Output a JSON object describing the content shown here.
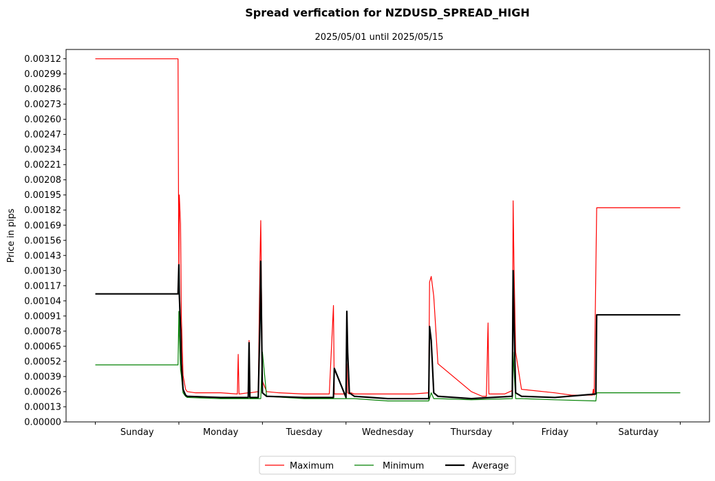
{
  "chart_data": {
    "type": "line",
    "title": "Spread verfication for NZDUSD_SPREAD_HIGH",
    "subtitle": "2025/05/01 until 2025/05/15",
    "xlabel": "",
    "ylabel": "Price in pips",
    "ylim": [
      0,
      0.0032
    ],
    "yticks": [
      "0.00000",
      "0.00013",
      "0.00026",
      "0.00039",
      "0.00052",
      "0.00065",
      "0.00078",
      "0.00091",
      "0.00104",
      "0.00117",
      "0.00130",
      "0.00143",
      "0.00156",
      "0.00169",
      "0.00182",
      "0.00195",
      "0.00208",
      "0.00221",
      "0.00234",
      "0.00247",
      "0.00260",
      "0.00273",
      "0.00286",
      "0.00299",
      "0.00312"
    ],
    "categories": [
      "Sunday",
      "Monday",
      "Tuesday",
      "Wednesday",
      "Thursday",
      "Friday",
      "Saturday"
    ],
    "grid": false,
    "legend_position": "bottom-center",
    "series": [
      {
        "name": "Maximum",
        "color": "#ff0000",
        "x": [
          0,
          0.99,
          1.0,
          1.005,
          1.02,
          1.03,
          1.05,
          1.08,
          1.1,
          1.2,
          1.5,
          1.7,
          1.71,
          1.72,
          1.83,
          1.84,
          1.85,
          1.95,
          1.97,
          1.98,
          2.0,
          2.05,
          2.2,
          2.5,
          2.6,
          2.8,
          2.85,
          2.86,
          2.87,
          3.0,
          3.01,
          3.02,
          3.04,
          3.06,
          3.1,
          3.3,
          3.5,
          3.6,
          3.8,
          3.99,
          4.0,
          4.02,
          4.05,
          4.1,
          4.5,
          4.63,
          4.68,
          4.7,
          4.71,
          4.72,
          4.9,
          4.99,
          5.0,
          5.01,
          5.03,
          5.1,
          5.5,
          5.7,
          5.75,
          5.95,
          5.96,
          5.97,
          6.0,
          7.0
        ],
        "values": [
          0.00312,
          0.00312,
          0.0011,
          0.00195,
          0.0017,
          0.0009,
          0.0004,
          0.00028,
          0.00026,
          0.00025,
          0.00025,
          0.00024,
          0.00058,
          0.00024,
          0.00025,
          0.0007,
          0.00025,
          0.00026,
          0.00136,
          0.00173,
          0.00035,
          0.00026,
          0.00025,
          0.00024,
          0.00024,
          0.00024,
          0.001,
          0.00024,
          0.00024,
          0.00024,
          0.0005,
          0.00025,
          0.00024,
          0.00025,
          0.00024,
          0.00024,
          0.00024,
          0.00024,
          0.00024,
          0.00025,
          0.0012,
          0.00125,
          0.00108,
          0.0005,
          0.00026,
          0.00022,
          0.00022,
          0.00085,
          0.00024,
          0.00024,
          0.00024,
          0.00027,
          0.0019,
          0.00137,
          0.0006,
          0.00028,
          0.00025,
          0.00023,
          0.00023,
          0.00023,
          0.00028,
          0.00023,
          0.00184,
          0.00184
        ]
      },
      {
        "name": "Minimum",
        "color": "#008000",
        "x": [
          0,
          0.99,
          1.0,
          1.005,
          1.02,
          1.03,
          1.05,
          1.08,
          1.1,
          1.5,
          1.98,
          2.0,
          2.05,
          2.5,
          2.9,
          3.0,
          3.02,
          3.04,
          3.1,
          3.5,
          3.99,
          4.0,
          4.02,
          4.05,
          4.1,
          4.5,
          4.99,
          5.0,
          5.01,
          5.03,
          5.1,
          5.5,
          5.99,
          6.0,
          7.0
        ],
        "values": [
          0.00049,
          0.00049,
          0.00095,
          0.00075,
          0.00045,
          0.0004,
          0.00025,
          0.00022,
          0.00021,
          0.0002,
          0.0002,
          0.0006,
          0.00022,
          0.0002,
          0.0002,
          0.0002,
          0.0002,
          0.0002,
          0.0002,
          0.00018,
          0.00018,
          0.0002,
          0.00025,
          0.0002,
          0.0002,
          0.00019,
          0.0002,
          0.0006,
          0.00045,
          0.0002,
          0.0002,
          0.00019,
          0.00018,
          0.00025,
          0.00025
        ]
      },
      {
        "name": "Average",
        "color": "#000000",
        "x": [
          0,
          0.99,
          1.0,
          1.005,
          1.02,
          1.03,
          1.05,
          1.08,
          1.1,
          1.5,
          1.83,
          1.84,
          1.85,
          1.95,
          1.97,
          1.98,
          2.0,
          2.05,
          2.5,
          2.8,
          2.85,
          2.86,
          3.0,
          3.01,
          3.02,
          3.04,
          3.1,
          3.5,
          3.99,
          4.0,
          4.02,
          4.05,
          4.1,
          4.5,
          4.99,
          5.0,
          5.01,
          5.03,
          5.1,
          5.5,
          5.99,
          6.0,
          7.0
        ],
        "values": [
          0.0011,
          0.0011,
          0.00135,
          0.0011,
          0.0008,
          0.0005,
          0.00028,
          0.00023,
          0.00022,
          0.00021,
          0.00021,
          0.00068,
          0.00021,
          0.00021,
          0.00085,
          0.00138,
          0.00025,
          0.00022,
          0.00021,
          0.00021,
          0.00021,
          0.00046,
          0.00021,
          0.00095,
          0.0006,
          0.00025,
          0.00022,
          0.0002,
          0.0002,
          0.00082,
          0.0007,
          0.00025,
          0.00022,
          0.0002,
          0.00022,
          0.0013,
          0.0009,
          0.00025,
          0.00022,
          0.00021,
          0.00024,
          0.00092,
          0.00092
        ]
      }
    ]
  }
}
